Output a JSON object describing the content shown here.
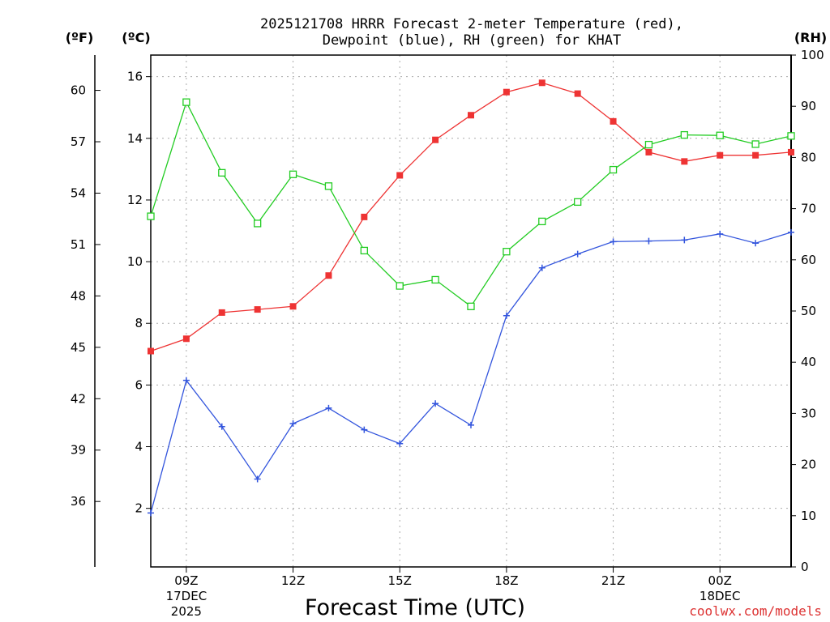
{
  "chart_data": {
    "type": "line",
    "title": [
      "2025121708 HRRR Forecast 2-meter Temperature (red),",
      "Dewpoint (blue), RH (green) for KHAT"
    ],
    "xlabel": "Forecast Time (UTC)",
    "credit": "coolwx.com/models",
    "units": {
      "fahrenheit": "(ºF)",
      "celsius": "(ºC)",
      "rh": "(RH)"
    },
    "x_hours": [
      8,
      9,
      10,
      11,
      12,
      13,
      14,
      15,
      16,
      17,
      18,
      19,
      20,
      21,
      22,
      23,
      24,
      25,
      26
    ],
    "xlim": [
      8,
      26
    ],
    "x_ticks": [
      {
        "hour": 9,
        "lines": [
          "09Z",
          "17DEC",
          "2025"
        ]
      },
      {
        "hour": 12,
        "lines": [
          "12Z"
        ]
      },
      {
        "hour": 15,
        "lines": [
          "15Z"
        ]
      },
      {
        "hour": 18,
        "lines": [
          "18Z"
        ]
      },
      {
        "hour": 21,
        "lines": [
          "21Z"
        ]
      },
      {
        "hour": 24,
        "lines": [
          "00Z",
          "18DEC"
        ]
      }
    ],
    "celsius_axis": {
      "ylim": [
        0.1,
        16.7
      ],
      "ticks": [
        2,
        4,
        6,
        8,
        10,
        12,
        14,
        16
      ]
    },
    "fahrenheit_axis": {
      "ticks": [
        36,
        39,
        42,
        45,
        48,
        51,
        54,
        57,
        60
      ]
    },
    "rh_axis": {
      "ylim": [
        0,
        100
      ],
      "ticks": [
        0,
        10,
        20,
        30,
        40,
        50,
        60,
        70,
        80,
        90,
        100
      ]
    },
    "colors": {
      "temperature": "#ee3333",
      "dewpoint": "#3355dd",
      "rh": "#22cc22"
    },
    "series": [
      {
        "name": "Temperature",
        "unit": "C",
        "marker": "filled-square",
        "values": [
          7.1,
          7.5,
          8.35,
          8.45,
          8.55,
          9.55,
          11.45,
          12.8,
          13.95,
          14.75,
          15.5,
          15.8,
          15.45,
          14.55,
          13.55,
          13.25,
          13.45,
          13.45,
          13.55
        ]
      },
      {
        "name": "Dewpoint",
        "unit": "C",
        "marker": "plus",
        "values": [
          1.85,
          6.15,
          4.65,
          2.95,
          4.75,
          5.25,
          4.55,
          4.1,
          5.4,
          4.7,
          8.25,
          9.8,
          10.25,
          10.65,
          10.67,
          10.7,
          10.9,
          10.6,
          10.95
        ]
      },
      {
        "name": "RH",
        "unit": "%",
        "marker": "open-square",
        "values": [
          68.5,
          90.8,
          77,
          67.1,
          76.7,
          74.4,
          61.8,
          54.9,
          56.1,
          50.9,
          61.6,
          67.5,
          71.3,
          77.6,
          82.5,
          84.4,
          84.3,
          82.6,
          84.2
        ]
      }
    ]
  }
}
